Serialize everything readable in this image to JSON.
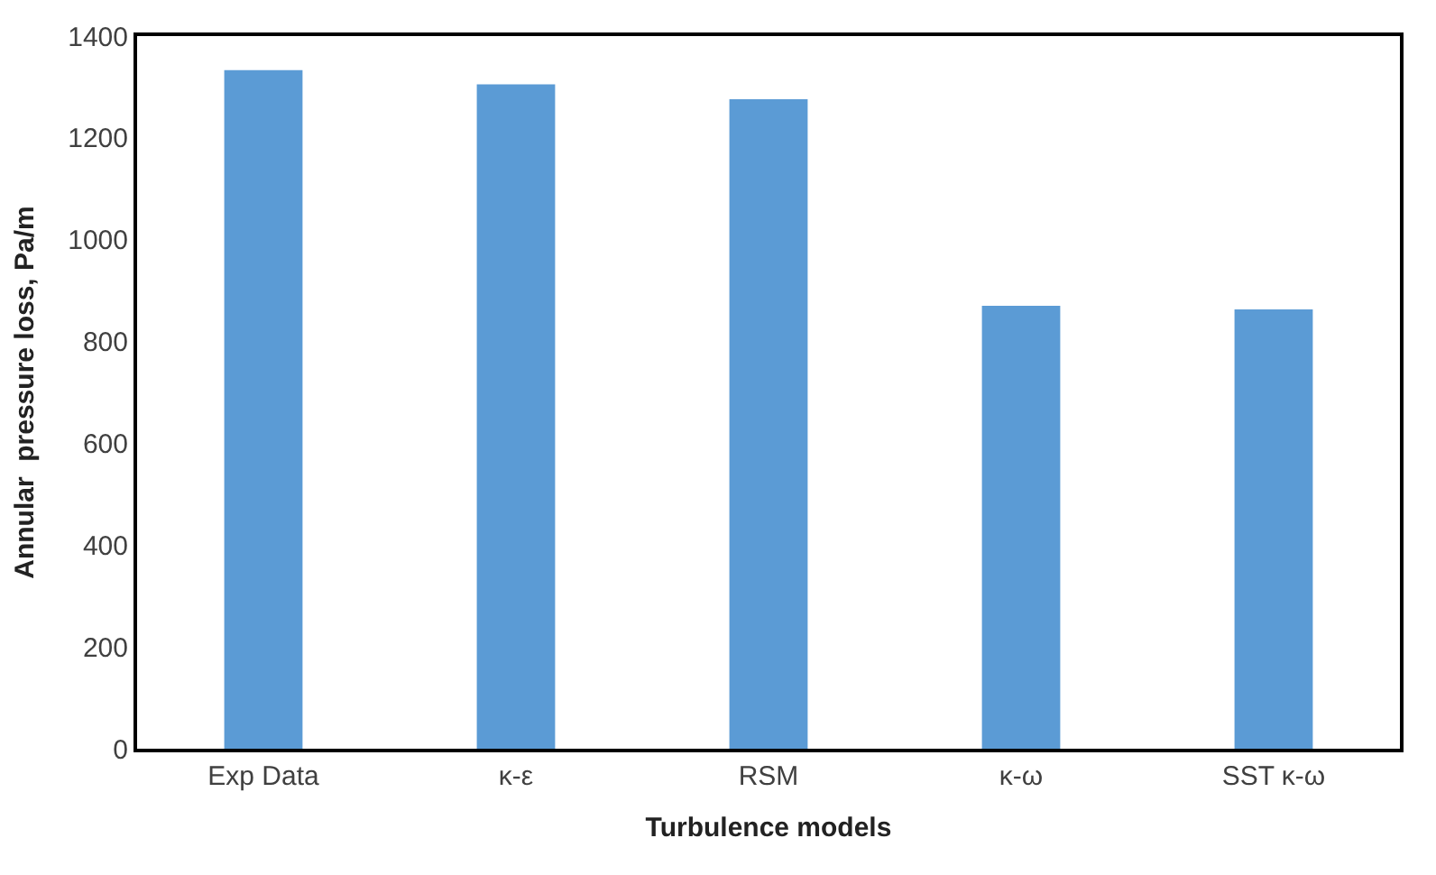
{
  "chart_data": {
    "type": "bar",
    "xlabel": "Turbulence models",
    "ylabel": "Annular  pressure loss, Pa/m",
    "categories": [
      "Exp Data",
      "κ-ε",
      "RSM",
      "κ-ω",
      "SST κ-ω"
    ],
    "values": [
      1333,
      1305,
      1276,
      870,
      863
    ],
    "color": "#5b9bd5",
    "ylim": [
      0,
      1400
    ],
    "yticks": [
      0,
      200,
      400,
      600,
      800,
      1000,
      1200,
      1400
    ]
  }
}
